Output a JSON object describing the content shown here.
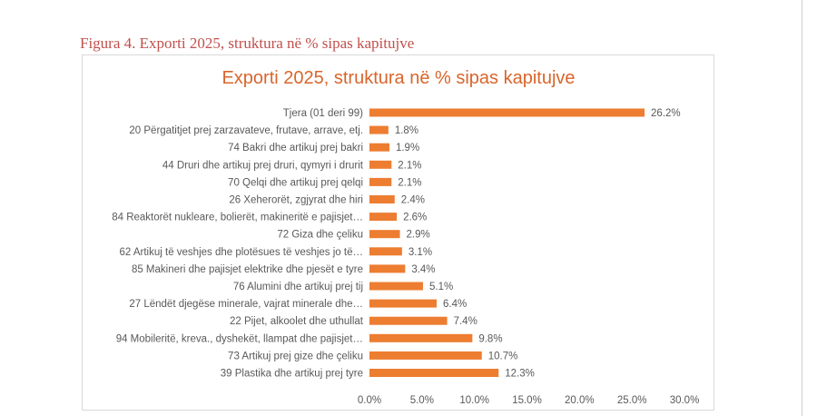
{
  "caption": "Figura 4. Exporti 2025, struktura në % sipas kapitujve",
  "chart_data": {
    "type": "bar",
    "orientation": "horizontal",
    "title": "Exporti 2025, struktura në % sipas kapitujve",
    "xlabel": "",
    "ylabel": "",
    "xlim": [
      0,
      30
    ],
    "ticks": [
      "0.0%",
      "5.0%",
      "10.0%",
      "15.0%",
      "20.0%",
      "25.0%",
      "30.0%"
    ],
    "tick_values": [
      0,
      5,
      10,
      15,
      20,
      25,
      30
    ],
    "grid": false,
    "legend": "none",
    "bar_color": "#ed7d31",
    "categories": [
      "Tjera (01 deri 99)",
      "20 Përgatitjet prej zarzavateve, frutave, arrave, etj.",
      "74 Bakri dhe artikuj prej bakri",
      "44 Druri dhe artikuj prej druri, qymyri i drurit",
      "70 Qelqi dhe artikuj prej qelqi",
      "26 Xeherorët, zgjyrat dhe hiri",
      "84 Reaktorët nukleare, bolierët, makineritë e pajisjet…",
      "72 Giza dhe çeliku",
      "62 Artikuj të veshjes dhe plotësues të veshjes jo të…",
      "85 Makineri dhe pajisjet elektrike dhe pjesët e tyre",
      "76 Alumini dhe artikuj prej tij",
      "27 Lëndët djegëse minerale, vajrat minerale dhe…",
      "22 Pijet, alkoolet dhe uthullat",
      "94 Mobileritë, kreva., dyshekët, llampat dhe pajisjet…",
      "73 Artikuj prej gize dhe çeliku",
      "39 Plastika dhe artikuj prej tyre"
    ],
    "values": [
      26.2,
      1.8,
      1.9,
      2.1,
      2.1,
      2.4,
      2.6,
      2.9,
      3.1,
      3.4,
      5.1,
      6.4,
      7.4,
      9.8,
      10.7,
      12.3
    ],
    "data_labels": [
      "26.2%",
      "1.8%",
      "1.9%",
      "2.1%",
      "2.1%",
      "2.4%",
      "2.6%",
      "2.9%",
      "3.1%",
      "3.4%",
      "5.1%",
      "6.4%",
      "7.4%",
      "9.8%",
      "10.7%",
      "12.3%"
    ]
  }
}
